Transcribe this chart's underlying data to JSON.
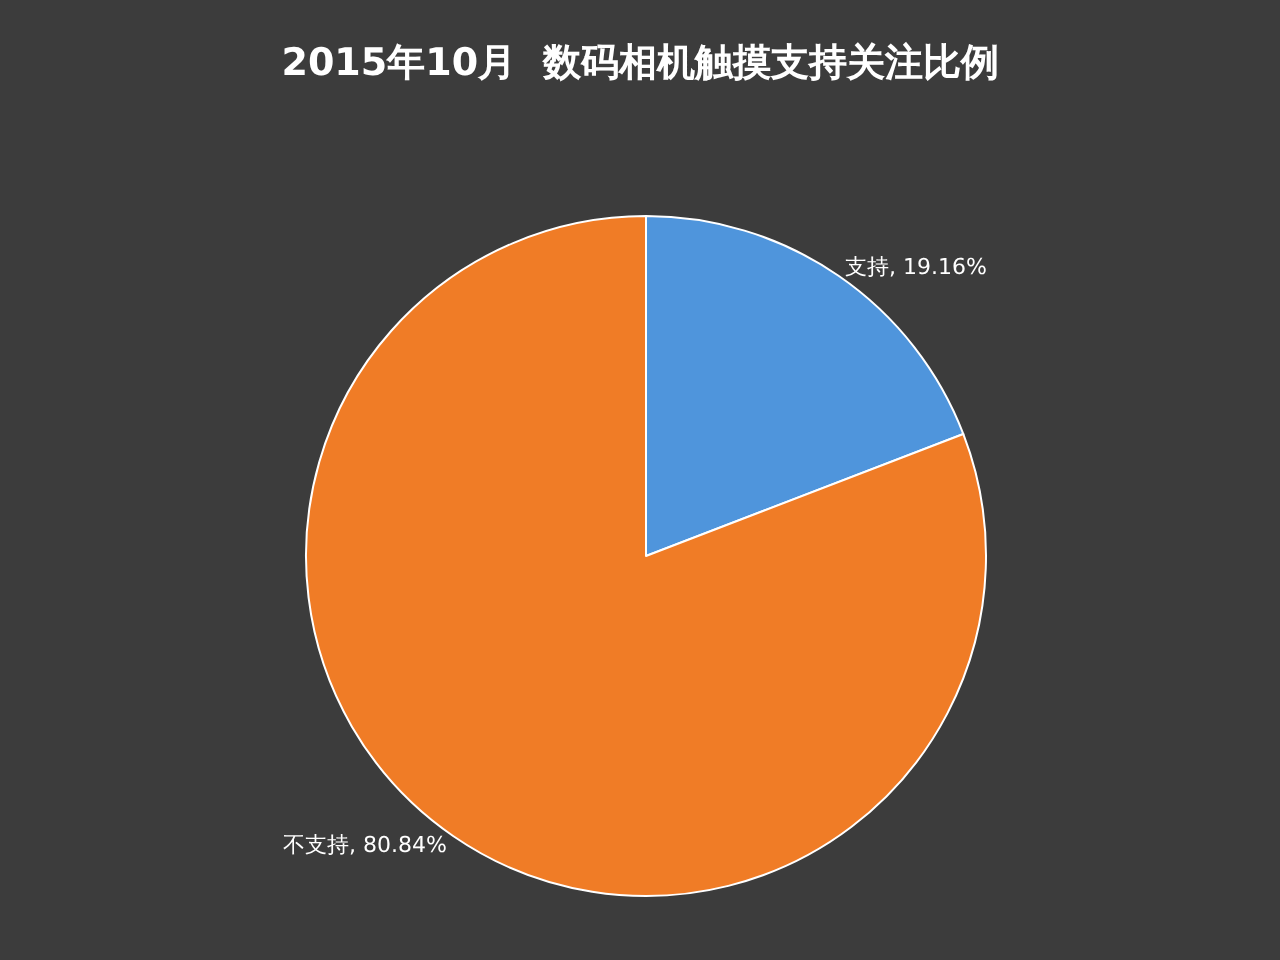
{
  "chart_data": {
    "type": "pie",
    "title": "2015年10月  数码相机触摸支持关注比例",
    "categories": [
      "支持",
      "不支持"
    ],
    "values": [
      19.16,
      80.84
    ],
    "colors": [
      "#4f95dc",
      "#f07c26"
    ],
    "value_labels": [
      "19.16%",
      "80.84%"
    ],
    "legend": false
  }
}
